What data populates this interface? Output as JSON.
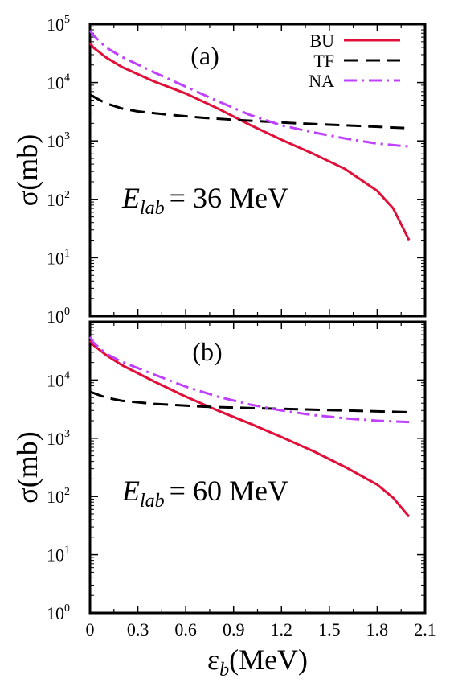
{
  "figure": {
    "x_axis_label": {
      "main": "ε",
      "sub": "b",
      "rest": "(MeV)"
    },
    "x_ticks": [
      "0",
      "0.3",
      "0.6",
      "0.9",
      "1.2",
      "1.5",
      "1.8",
      "2.1"
    ],
    "y_tick_base": "10",
    "y_tick_exponents": [
      "0",
      "1",
      "2",
      "3",
      "4",
      "5"
    ]
  },
  "colors": {
    "BU": "#e0103a",
    "TF": "#000000",
    "NA": "#bf40ff"
  },
  "chart_data": [
    {
      "type": "line",
      "panel_label": "(a)",
      "annotation": {
        "symbol": "E",
        "sub": "lab",
        "value": "= 36 MeV"
      },
      "ylabel": "σ(mb)",
      "xlabel": "ε_b(MeV)",
      "xlim": [
        0,
        2.1
      ],
      "ylim": [
        1,
        100000
      ],
      "yscale": "log",
      "legend": {
        "position": "top-right",
        "entries": [
          "BU",
          "TF",
          "NA"
        ]
      },
      "show_x_ticklabels": false,
      "show_top_y_label": true,
      "series": [
        {
          "name": "BU",
          "style": "solid",
          "x": [
            0.0,
            0.02,
            0.1,
            0.2,
            0.4,
            0.6,
            0.8,
            1.0,
            1.2,
            1.4,
            1.6,
            1.8,
            1.9,
            2.0
          ],
          "y": [
            48000,
            40000,
            27000,
            18500,
            10500,
            6500,
            3600,
            1900,
            1050,
            600,
            330,
            140,
            70,
            20
          ]
        },
        {
          "name": "TF",
          "style": "dashed",
          "x": [
            0.0,
            0.05,
            0.1,
            0.2,
            0.3,
            0.5,
            0.7,
            0.9,
            1.1,
            1.3,
            1.5,
            1.7,
            2.0
          ],
          "y": [
            6200,
            5200,
            4400,
            3600,
            3200,
            2800,
            2500,
            2300,
            2150,
            2000,
            1900,
            1800,
            1650
          ]
        },
        {
          "name": "NA",
          "style": "dash-dot",
          "x": [
            0.0,
            0.02,
            0.1,
            0.2,
            0.4,
            0.6,
            0.8,
            1.0,
            1.2,
            1.4,
            1.6,
            1.8,
            2.0
          ],
          "y": [
            78000,
            65000,
            40000,
            27500,
            15000,
            8500,
            4800,
            2800,
            1850,
            1400,
            1100,
            900,
            800
          ]
        }
      ]
    },
    {
      "type": "line",
      "panel_label": "(b)",
      "annotation": {
        "symbol": "E",
        "sub": "lab",
        "value": "= 60 MeV"
      },
      "ylabel": "σ(mb)",
      "xlabel": "ε_b(MeV)",
      "xlim": [
        0,
        2.1
      ],
      "ylim": [
        1,
        100000
      ],
      "yscale": "log",
      "show_x_ticklabels": true,
      "show_top_y_label": false,
      "series": [
        {
          "name": "BU",
          "style": "solid",
          "x": [
            0.0,
            0.02,
            0.1,
            0.2,
            0.4,
            0.6,
            0.8,
            1.0,
            1.2,
            1.4,
            1.6,
            1.8,
            1.9,
            2.0
          ],
          "y": [
            47000,
            40000,
            27000,
            18000,
            9500,
            5200,
            3000,
            1800,
            1050,
            600,
            320,
            160,
            95,
            45
          ]
        },
        {
          "name": "TF",
          "style": "dashed",
          "x": [
            0.0,
            0.05,
            0.1,
            0.2,
            0.4,
            0.7,
            1.0,
            1.3,
            1.6,
            2.0
          ],
          "y": [
            6300,
            5600,
            5000,
            4400,
            3900,
            3500,
            3300,
            3150,
            3000,
            2800
          ]
        },
        {
          "name": "NA",
          "style": "dash-dot",
          "x": [
            0.0,
            0.02,
            0.1,
            0.2,
            0.4,
            0.6,
            0.8,
            1.0,
            1.2,
            1.4,
            1.6,
            1.8,
            2.0
          ],
          "y": [
            55000,
            44000,
            28500,
            20500,
            12500,
            7700,
            5200,
            3800,
            3000,
            2500,
            2200,
            2000,
            1900
          ]
        }
      ]
    }
  ]
}
